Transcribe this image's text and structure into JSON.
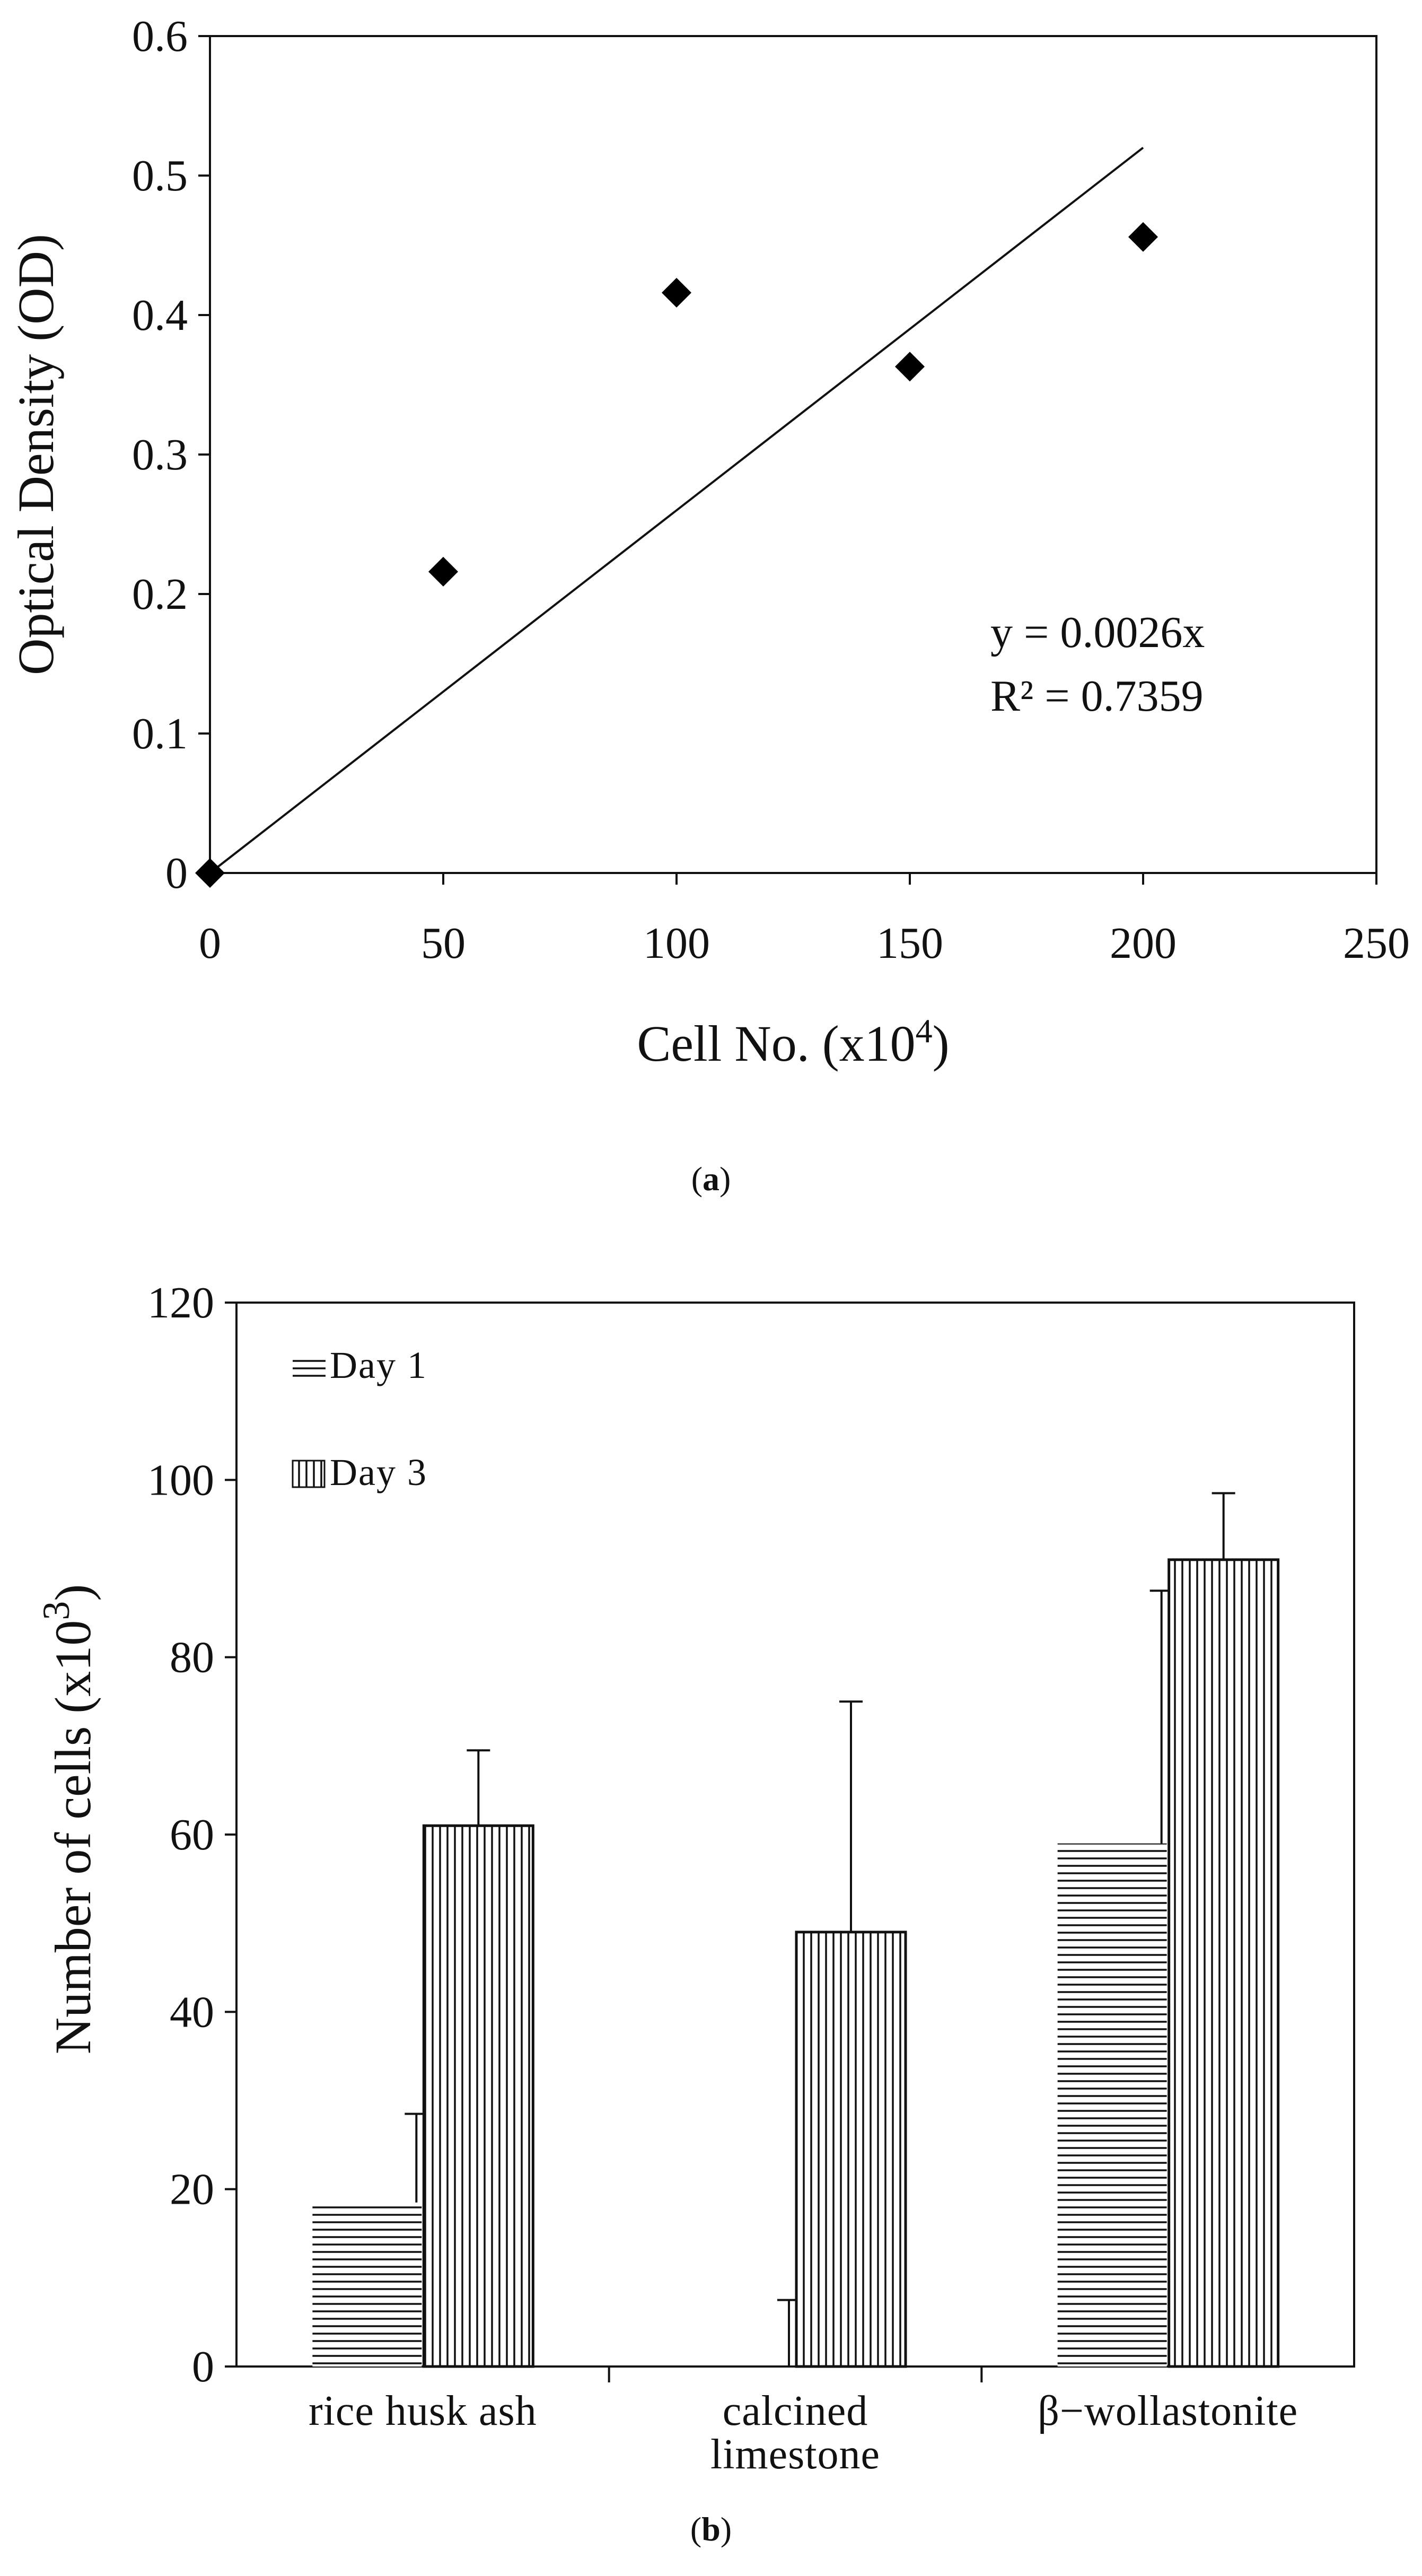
{
  "chart_data": [
    {
      "type": "scatter",
      "panel": "a",
      "caption": "a",
      "xlabel": "Cell No. (x10",
      "xlabel_sup": "4",
      "xlabel_close": ")",
      "ylabel": "Optical Density (OD)",
      "xlim": [
        0,
        250
      ],
      "ylim": [
        0,
        0.6
      ],
      "xticks": [
        0,
        50,
        100,
        150,
        200,
        250
      ],
      "yticks": [
        0,
        0.1,
        0.2,
        0.3,
        0.4,
        0.5,
        0.6
      ],
      "x": [
        0,
        50,
        100,
        150,
        200
      ],
      "y": [
        0,
        0.216,
        0.416,
        0.363,
        0.456
      ],
      "trendline": {
        "slope": 0.0026,
        "x_range": [
          0,
          200
        ]
      },
      "equation": "y = 0.0026x",
      "r2_label": "R² = 0.7359",
      "marker": "diamond",
      "color": "#000000"
    },
    {
      "type": "bar",
      "panel": "b",
      "caption": "b",
      "ylabel": "Number of cells (x10",
      "ylabel_sup": "3",
      "ylabel_close": ")",
      "ylim": [
        0,
        120
      ],
      "yticks": [
        0,
        20,
        40,
        60,
        80,
        100,
        120
      ],
      "categories": [
        [
          "rice husk ash"
        ],
        [
          "calcined",
          "limestone"
        ],
        [
          "β−wollastonite"
        ]
      ],
      "series": [
        {
          "name": "Day 1",
          "pattern": "horizontal-lines",
          "values": [
            18.5,
            0,
            59
          ],
          "errors": [
            10,
            7.5,
            28.5
          ]
        },
        {
          "name": "Day 3",
          "pattern": "vertical-lines",
          "values": [
            61,
            49,
            91
          ],
          "errors": [
            8.5,
            26,
            7.5
          ]
        }
      ],
      "legend_position": "top-left",
      "color": "#000000"
    }
  ]
}
